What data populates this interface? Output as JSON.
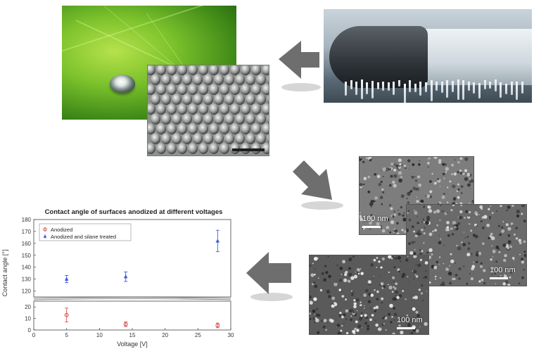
{
  "colors": {
    "arrow": "#6e6e6e",
    "anodized": "#d9534f",
    "silane": "#3b5bdb"
  },
  "images": {
    "leaf": "green-leaf-water-droplet-photo",
    "lotus": "lotus-leaf-micro-structure-sem",
    "wing": "iced-aircraft-wing-photo",
    "sem_top": "anodized-surface-sem-1",
    "sem_mid": "anodized-surface-sem-2",
    "sem_bottom": "anodized-surface-sem-3"
  },
  "scale_bars": {
    "sem_top": "100 nm",
    "sem_mid": "100 nm",
    "sem_bottom": "100 nm"
  },
  "chart_data": {
    "type": "scatter",
    "title": "Contact angle of surfaces anodized at different voltages",
    "xlabel": "Voltage [V]",
    "ylabel": "Contact angle [°]",
    "xlim": [
      0,
      30
    ],
    "x_ticks": [
      "0",
      "5",
      "10",
      "15",
      "20",
      "25",
      "30"
    ],
    "y_ticks_upper": [
      "120",
      "130",
      "140",
      "150",
      "160",
      "170",
      "180"
    ],
    "y_ticks_lower": [
      "0",
      "10",
      "20"
    ],
    "ylim_upper": [
      115,
      180
    ],
    "ylim_lower": [
      0,
      25
    ],
    "broken_axis": true,
    "legend_position": "top-left",
    "series": [
      {
        "name": "Anodized",
        "marker": "circle",
        "x": [
          5,
          14,
          28
        ],
        "y": [
          13,
          5,
          4
        ],
        "err": [
          6,
          2,
          2
        ]
      },
      {
        "name": "Anodized and silane treated",
        "marker": "triangle",
        "x": [
          5,
          14,
          28
        ],
        "y": [
          130,
          132,
          162
        ],
        "err": [
          3,
          4,
          9
        ]
      }
    ]
  }
}
